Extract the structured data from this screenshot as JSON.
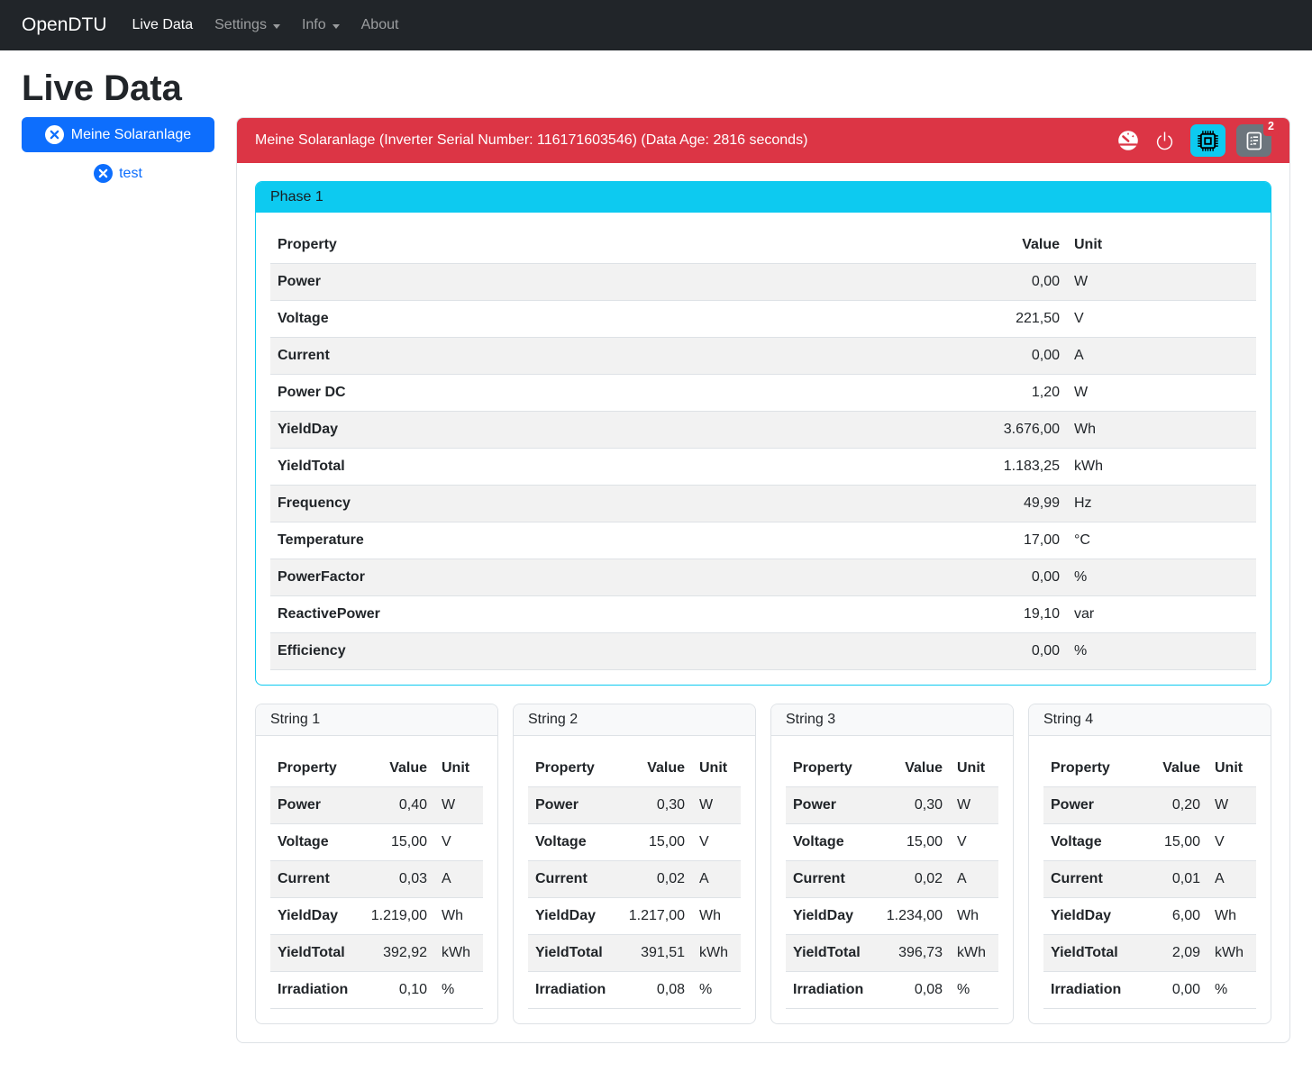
{
  "colors": {
    "primary": "#0d6efd",
    "danger": "#dc3545",
    "info": "#0dcaf0",
    "secondary": "#6c757d",
    "navbar_bg": "#212529",
    "border": "#dee2e6",
    "stripe": "#f2f2f2"
  },
  "navbar": {
    "brand": "OpenDTU",
    "items": [
      {
        "label": "Live Data",
        "active": true,
        "dropdown": false
      },
      {
        "label": "Settings",
        "active": false,
        "dropdown": true
      },
      {
        "label": "Info",
        "active": false,
        "dropdown": true
      },
      {
        "label": "About",
        "active": false,
        "dropdown": false
      }
    ]
  },
  "page_title": "Live Data",
  "sidebar": {
    "inverters": [
      {
        "label": "Meine Solaranlage",
        "selected": true
      },
      {
        "label": "test",
        "selected": false
      }
    ]
  },
  "inverter_panel": {
    "title": "Meine Solaranlage (Inverter Serial Number: 116171603546) (Data Age: 2816 seconds)",
    "action_icons": [
      "speedometer-icon",
      "power-icon",
      "cpu-icon",
      "event-log-icon"
    ],
    "event_count": "2"
  },
  "table_columns": [
    "Property",
    "Value",
    "Unit"
  ],
  "phase": {
    "title": "Phase 1",
    "rows": [
      [
        "Power",
        "0,00",
        "W"
      ],
      [
        "Voltage",
        "221,50",
        "V"
      ],
      [
        "Current",
        "0,00",
        "A"
      ],
      [
        "Power DC",
        "1,20",
        "W"
      ],
      [
        "YieldDay",
        "3.676,00",
        "Wh"
      ],
      [
        "YieldTotal",
        "1.183,25",
        "kWh"
      ],
      [
        "Frequency",
        "49,99",
        "Hz"
      ],
      [
        "Temperature",
        "17,00",
        "°C"
      ],
      [
        "PowerFactor",
        "0,00",
        "%"
      ],
      [
        "ReactivePower",
        "19,10",
        "var"
      ],
      [
        "Efficiency",
        "0,00",
        "%"
      ]
    ]
  },
  "strings": [
    {
      "title": "String 1",
      "rows": [
        [
          "Power",
          "0,40",
          "W"
        ],
        [
          "Voltage",
          "15,00",
          "V"
        ],
        [
          "Current",
          "0,03",
          "A"
        ],
        [
          "YieldDay",
          "1.219,00",
          "Wh"
        ],
        [
          "YieldTotal",
          "392,92",
          "kWh"
        ],
        [
          "Irradiation",
          "0,10",
          "%"
        ]
      ]
    },
    {
      "title": "String 2",
      "rows": [
        [
          "Power",
          "0,30",
          "W"
        ],
        [
          "Voltage",
          "15,00",
          "V"
        ],
        [
          "Current",
          "0,02",
          "A"
        ],
        [
          "YieldDay",
          "1.217,00",
          "Wh"
        ],
        [
          "YieldTotal",
          "391,51",
          "kWh"
        ],
        [
          "Irradiation",
          "0,08",
          "%"
        ]
      ]
    },
    {
      "title": "String 3",
      "rows": [
        [
          "Power",
          "0,30",
          "W"
        ],
        [
          "Voltage",
          "15,00",
          "V"
        ],
        [
          "Current",
          "0,02",
          "A"
        ],
        [
          "YieldDay",
          "1.234,00",
          "Wh"
        ],
        [
          "YieldTotal",
          "396,73",
          "kWh"
        ],
        [
          "Irradiation",
          "0,08",
          "%"
        ]
      ]
    },
    {
      "title": "String 4",
      "rows": [
        [
          "Power",
          "0,20",
          "W"
        ],
        [
          "Voltage",
          "15,00",
          "V"
        ],
        [
          "Current",
          "0,01",
          "A"
        ],
        [
          "YieldDay",
          "6,00",
          "Wh"
        ],
        [
          "YieldTotal",
          "2,09",
          "kWh"
        ],
        [
          "Irradiation",
          "0,00",
          "%"
        ]
      ]
    }
  ]
}
